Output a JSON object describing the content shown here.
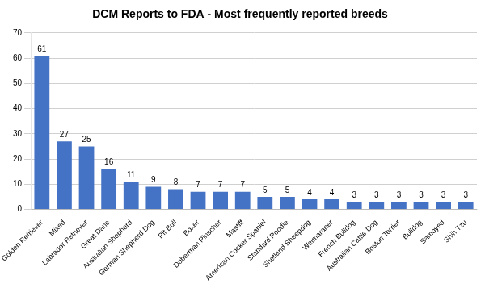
{
  "chart_data": {
    "type": "bar",
    "title": "DCM Reports to FDA - Most frequently reported breeds",
    "categories": [
      "Golden Retriever",
      "Mixed",
      "Labrador Retriever",
      "Great Dane",
      "Australian Shepherd",
      "German Shepherd Dog",
      "Pit Bull",
      "Boxer",
      "Doberman Pinscher",
      "Mastiff",
      "American Cocker Spaniel",
      "Standard Poodle",
      "Shetland Sheepdog",
      "Weimaraner",
      "French Bulldog",
      "Australian Cattle Dog",
      "Boston Terrier",
      "Bulldog",
      "Samoyed",
      "Shih Tzu"
    ],
    "values": [
      61,
      27,
      25,
      16,
      11,
      9,
      8,
      7,
      7,
      7,
      5,
      5,
      4,
      4,
      3,
      3,
      3,
      3,
      3,
      3
    ],
    "color": "#4472c4",
    "ylim": [
      0,
      70
    ],
    "yticks": [
      0,
      10,
      20,
      30,
      40,
      50,
      60,
      70
    ],
    "grid": true,
    "data_labels": true
  }
}
